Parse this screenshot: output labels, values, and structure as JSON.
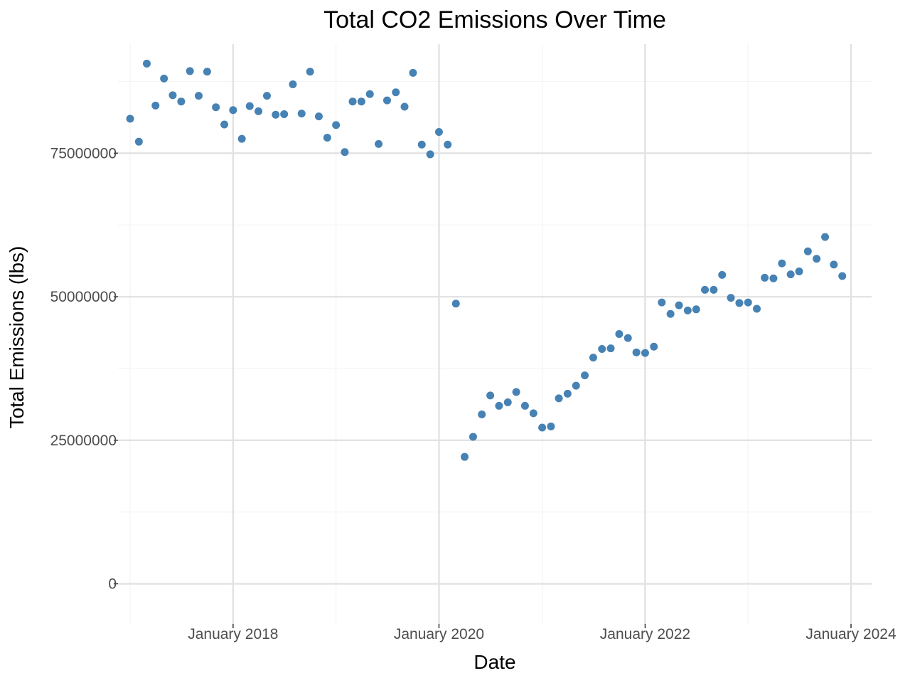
{
  "chart_data": {
    "type": "scatter",
    "title": "Total CO2 Emissions Over Time",
    "xlabel": "Date",
    "ylabel": "Total Emissions (lbs)",
    "xlim": [
      "2016-11-19",
      "2024-03-14"
    ],
    "ylim": [
      -7000000,
      94000000
    ],
    "x_ticks": [
      {
        "date": "2018-01-01",
        "label": "January 2018"
      },
      {
        "date": "2020-01-01",
        "label": "January 2020"
      },
      {
        "date": "2022-01-01",
        "label": "January 2022"
      },
      {
        "date": "2024-01-01",
        "label": "January 2024"
      }
    ],
    "x_minor_ticks": [
      "2017-01-01",
      "2019-01-01",
      "2021-01-01",
      "2023-01-01"
    ],
    "y_ticks": [
      {
        "value": 0,
        "label": "0"
      },
      {
        "value": 25000000,
        "label": "25000000"
      },
      {
        "value": 50000000,
        "label": "50000000"
      },
      {
        "value": 75000000,
        "label": "75000000"
      }
    ],
    "y_minor_ticks": [
      12500000,
      37500000,
      62500000,
      87500000
    ],
    "grid": true,
    "legend": "none",
    "point_color": "#4682b4",
    "series": [
      {
        "x": [
          "2017-01-01",
          "2017-02-01",
          "2017-03-01",
          "2017-04-01",
          "2017-05-01",
          "2017-06-01",
          "2017-07-01",
          "2017-08-01",
          "2017-09-01",
          "2017-10-01",
          "2017-11-01",
          "2017-12-01",
          "2018-01-01",
          "2018-02-01",
          "2018-03-01",
          "2018-04-01",
          "2018-05-01",
          "2018-06-01",
          "2018-07-01",
          "2018-08-01",
          "2018-09-01",
          "2018-10-01",
          "2018-11-01",
          "2018-12-01",
          "2019-01-01",
          "2019-02-01",
          "2019-03-01",
          "2019-04-01",
          "2019-05-01",
          "2019-06-01",
          "2019-07-01",
          "2019-08-01",
          "2019-09-01",
          "2019-10-01",
          "2019-11-01",
          "2019-12-01",
          "2020-01-01",
          "2020-02-01",
          "2020-03-01",
          "2020-04-01",
          "2020-05-01",
          "2020-06-01",
          "2020-07-01",
          "2020-08-01",
          "2020-09-01",
          "2020-10-01",
          "2020-11-01",
          "2020-12-01",
          "2021-01-01",
          "2021-02-01",
          "2021-03-01",
          "2021-04-01",
          "2021-05-01",
          "2021-06-01",
          "2021-07-01",
          "2021-08-01",
          "2021-09-01",
          "2021-10-01",
          "2021-11-01",
          "2021-12-01",
          "2022-01-01",
          "2022-02-01",
          "2022-03-01",
          "2022-04-01",
          "2022-05-01",
          "2022-06-01",
          "2022-07-01",
          "2022-08-01",
          "2022-09-01",
          "2022-10-01",
          "2022-11-01",
          "2022-12-01",
          "2023-01-01",
          "2023-02-01",
          "2023-03-01",
          "2023-04-01",
          "2023-05-01",
          "2023-06-01",
          "2023-07-01",
          "2023-08-01",
          "2023-09-01",
          "2023-10-01",
          "2023-11-01",
          "2023-12-01"
        ],
        "y": [
          81000000,
          77000000,
          90600000,
          83300000,
          88000000,
          85100000,
          84000000,
          89300000,
          85000000,
          89200000,
          83000000,
          80000000,
          82500000,
          77500000,
          83200000,
          82300000,
          85000000,
          81700000,
          81800000,
          87000000,
          81900000,
          89200000,
          81400000,
          77700000,
          79900000,
          75200000,
          84000000,
          84000000,
          85300000,
          76600000,
          84200000,
          85600000,
          83100000,
          89000000,
          76500000,
          74800000,
          78700000,
          76500000,
          48800000,
          22100000,
          25600000,
          29500000,
          32800000,
          31000000,
          31600000,
          33400000,
          31000000,
          29700000,
          27200000,
          27400000,
          32300000,
          33100000,
          34500000,
          36300000,
          39400000,
          40900000,
          41000000,
          43500000,
          42800000,
          40300000,
          40200000,
          41300000,
          49000000,
          47000000,
          48500000,
          47600000,
          47800000,
          51200000,
          51200000,
          53800000,
          49800000,
          48900000,
          49000000,
          47900000,
          53300000,
          53200000,
          55800000,
          53900000,
          54400000,
          57900000,
          56600000,
          60400000,
          55600000,
          53600000
        ]
      }
    ]
  }
}
